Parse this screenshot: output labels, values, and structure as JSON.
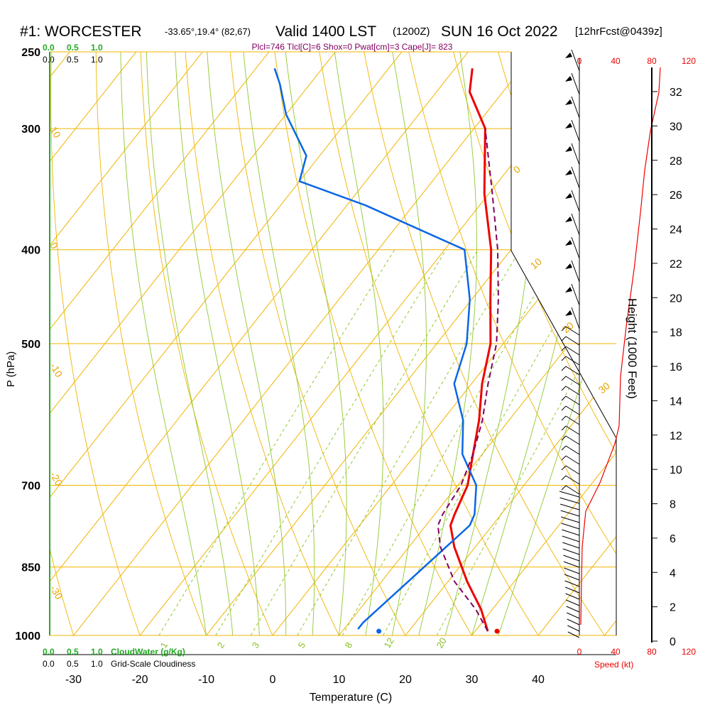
{
  "header": {
    "title": "#1: WORCESTER",
    "location": "-33.65°,19.4° (82,67)",
    "valid": "Valid 1400 LST",
    "utc": "(1200Z)",
    "date": "SUN 16 Oct 2022",
    "forecast": "[12hrFcst@0439z]",
    "params": "Plcl=746 Tlcl[C]=6 Shox=0 Pwat[cm]=3 Cape[J]= 823"
  },
  "legend": {
    "top_green": [
      "0.0",
      "0.5",
      "1.0"
    ],
    "top_black": [
      "0.0",
      "0.5",
      "1.0"
    ],
    "bottom_green": [
      "0.0",
      "0.5",
      "1.0"
    ],
    "bottom_green_label": "CloudWater (g/Kg)",
    "bottom_black": [
      "0.0",
      "0.5",
      "1.0"
    ],
    "bottom_black_label": "Grid-Scale Cloudiness"
  },
  "colors": {
    "temperature": "#ee0000",
    "dewpoint": "#0a66e6",
    "parcel": "#800060",
    "isotherm": "#f0b400",
    "mixing_ratio": "#90c830",
    "adiabat": "#90c830",
    "speed": "#ee0000"
  },
  "chart_data": {
    "type": "line",
    "xlabel": "Temperature (C)",
    "ylabel": "P (hPa)",
    "y2label": "Height (1000 Feet)",
    "speed_label": "Speed (kt)",
    "xlim": [
      -35,
      47
    ],
    "ylim": [
      1000,
      250
    ],
    "x_ticks": [
      "-30",
      "-20",
      "-10",
      "0",
      "10",
      "20",
      "30",
      "40"
    ],
    "pressure_ticks": [
      {
        "p": 250,
        "label": "250"
      },
      {
        "p": 300,
        "label": "300"
      },
      {
        "p": 400,
        "label": "400"
      },
      {
        "p": 500,
        "label": "500"
      },
      {
        "p": 700,
        "label": "700"
      },
      {
        "p": 850,
        "label": "850"
      },
      {
        "p": 1000,
        "label": "1000"
      }
    ],
    "height_ticks": [
      "0",
      "2",
      "4",
      "6",
      "8",
      "10",
      "12",
      "14",
      "16",
      "18",
      "20",
      "22",
      "24",
      "26",
      "28",
      "30",
      "32"
    ],
    "speed_ticks": [
      "0",
      "40",
      "80",
      "120"
    ],
    "skewed_isotherm_labels": [
      "-30",
      "-20",
      "-10",
      "0",
      "10",
      "20",
      "30"
    ],
    "mixing_ratio_labels": [
      "1",
      "2",
      "3",
      "5",
      "8",
      "12",
      "20"
    ],
    "series": [
      {
        "name": "temperature",
        "points": [
          [
            31.9,
            990
          ],
          [
            28.3,
            940
          ],
          [
            22.9,
            880
          ],
          [
            16.8,
            810
          ],
          [
            13.7,
            770
          ],
          [
            13.0,
            750
          ],
          [
            11.5,
            700
          ],
          [
            8.6,
            650
          ],
          [
            5.5,
            600
          ],
          [
            1.6,
            550
          ],
          [
            -1.9,
            500
          ],
          [
            -7.2,
            450
          ],
          [
            -13.0,
            400
          ],
          [
            -20.7,
            350
          ],
          [
            -28.3,
            300
          ],
          [
            -35.0,
            275
          ],
          [
            -37.4,
            260
          ]
        ]
      },
      {
        "name": "dewpoint",
        "points": [
          [
            12.1,
            985
          ],
          [
            12.1,
            970
          ],
          [
            14.0,
            880
          ],
          [
            15.6,
            810
          ],
          [
            16.6,
            770
          ],
          [
            16.0,
            750
          ],
          [
            12.8,
            700
          ],
          [
            7.0,
            650
          ],
          [
            3.1,
            600
          ],
          [
            -2.6,
            550
          ],
          [
            -5.5,
            500
          ],
          [
            -10.3,
            450
          ],
          [
            -17.0,
            400
          ],
          [
            -37.2,
            360
          ],
          [
            -50.0,
            340
          ],
          [
            -52.0,
            320
          ],
          [
            -60.0,
            290
          ],
          [
            -64.5,
            270
          ],
          [
            -67.2,
            260
          ]
        ]
      },
      {
        "name": "parcel",
        "points": [
          [
            31.9,
            990
          ],
          [
            27.5,
            940
          ],
          [
            21.0,
            880
          ],
          [
            14.7,
            810
          ],
          [
            11.8,
            770
          ],
          [
            11.2,
            750
          ],
          [
            10.5,
            700
          ],
          [
            8.6,
            650
          ],
          [
            6.0,
            600
          ],
          [
            2.5,
            550
          ],
          [
            -1.0,
            500
          ],
          [
            -6.0,
            450
          ],
          [
            -12.0,
            400
          ],
          [
            -19.5,
            350
          ],
          [
            -28.3,
            300
          ]
        ]
      }
    ],
    "surface_markers": [
      {
        "name": "surface-temperature",
        "t": 33.3,
        "p": 990
      },
      {
        "name": "surface-dewpoint",
        "t": 15.5,
        "p": 990
      }
    ]
  }
}
